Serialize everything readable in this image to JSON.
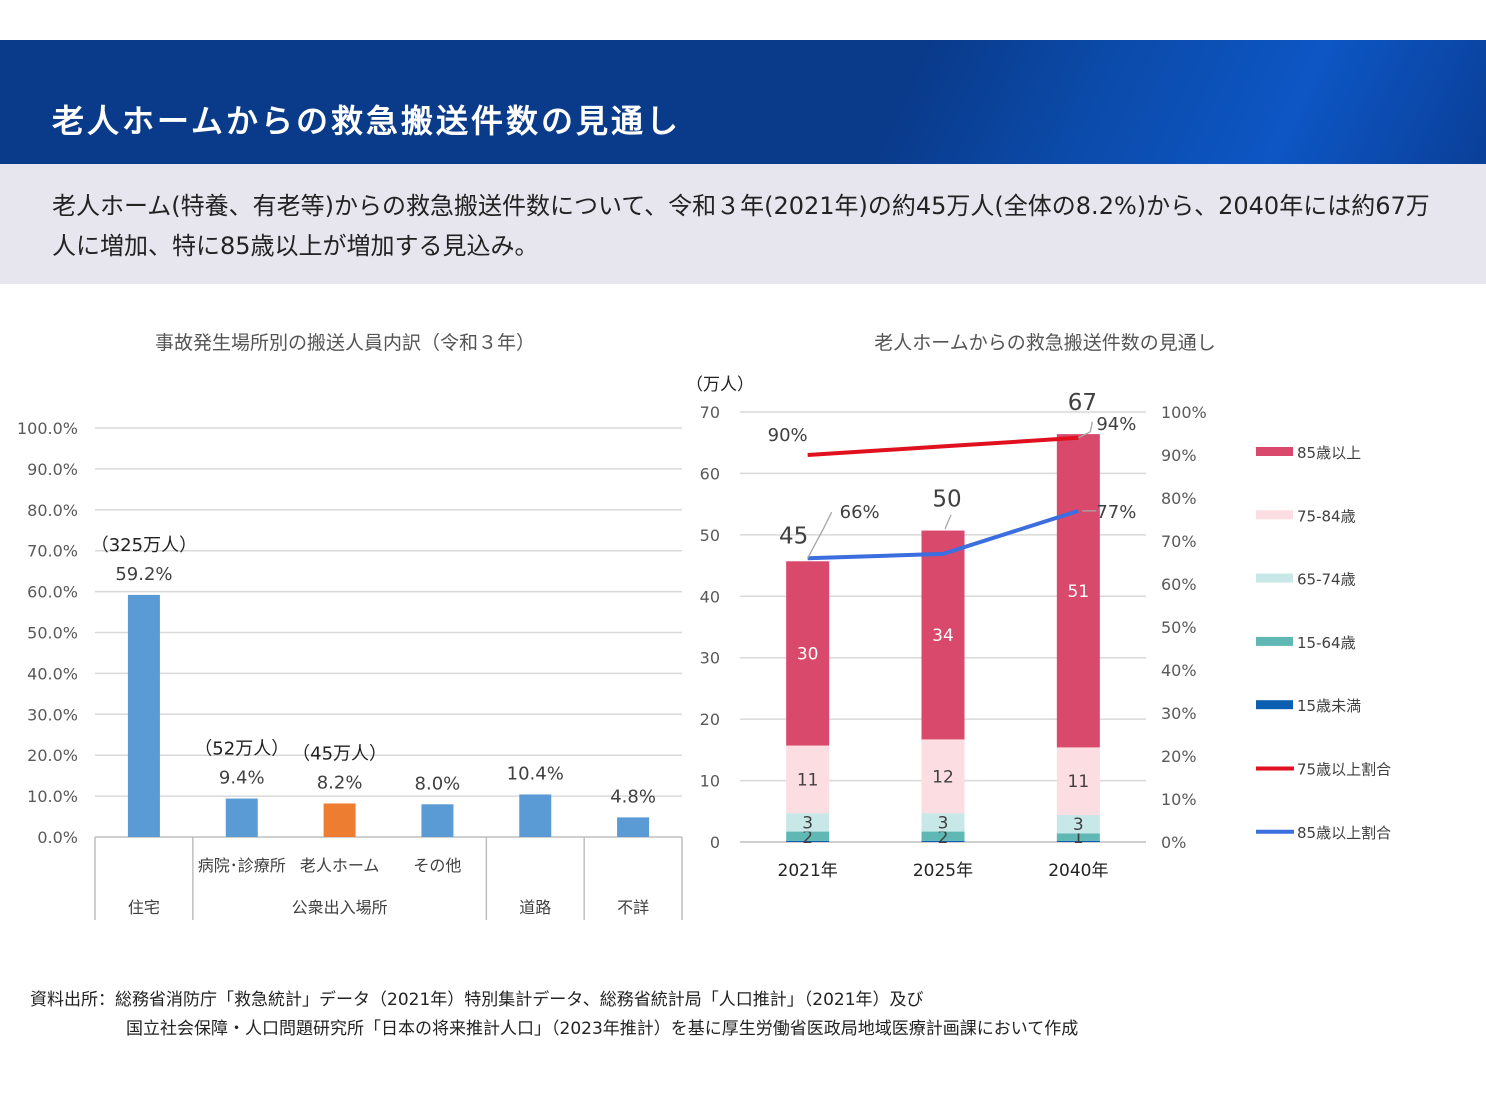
{
  "header": {
    "title": "老人ホームからの救急搬送件数の見通し"
  },
  "summary": {
    "text": "老人ホーム(特養、有老等)からの救急搬送件数について、令和３年(2021年)の約45万人(全体の8.2%)から、2040年には約67万人に増加、特に85歳以上が増加する見込み。"
  },
  "chart_data": [
    {
      "type": "bar",
      "title": "事故発生場所別の搬送人員内訳（令和３年）",
      "categories": [
        "住宅",
        "病院･診療所",
        "老人ホーム",
        "その他",
        "道路",
        "不詳"
      ],
      "values": [
        59.2,
        9.4,
        8.2,
        8.0,
        10.4,
        4.8
      ],
      "value_labels": [
        "59.2%",
        "9.4%",
        "8.2%",
        "8.0%",
        "10.4%",
        "4.8%"
      ],
      "count_labels": [
        "（325万人）",
        "（52万人）",
        "（45万人）",
        "",
        "",
        ""
      ],
      "group_labels": [
        "住宅",
        "公衆出入場所",
        "道路",
        "不詳"
      ],
      "yticks": [
        "0.0%",
        "10.0%",
        "20.0%",
        "30.0%",
        "40.0%",
        "50.0%",
        "60.0%",
        "70.0%",
        "80.0%",
        "90.0%",
        "100.0%"
      ],
      "ylim": [
        0,
        100
      ],
      "highlight_index": 2,
      "colors": {
        "bar": "#5b9bd5",
        "highlight": "#ed7d31",
        "grid": "#d9d9d9"
      }
    },
    {
      "type": "bar",
      "stacked": true,
      "title": "老人ホームからの救急搬送件数の見通し",
      "ylabel": "（万人）",
      "categories": [
        "2021年",
        "2025年",
        "2040年"
      ],
      "yticks": [
        "0",
        "10",
        "20",
        "30",
        "40",
        "50",
        "60",
        "70"
      ],
      "ylim": [
        0,
        70
      ],
      "y2ticks": [
        "0%",
        "10%",
        "20%",
        "30%",
        "40%",
        "50%",
        "60%",
        "70%",
        "80%",
        "90%",
        "100%"
      ],
      "y2lim": [
        0,
        100
      ],
      "totals": [
        45,
        50,
        67
      ],
      "series": [
        {
          "name": "85歳以上",
          "values": [
            30,
            34,
            51
          ],
          "labels": [
            "30",
            "34",
            "51"
          ],
          "color": "#d9496b"
        },
        {
          "name": "75-84歳",
          "values": [
            11,
            12,
            11
          ],
          "labels": [
            "11",
            "12",
            "11"
          ],
          "color": "#fcdde2"
        },
        {
          "name": "65-74歳",
          "values": [
            3,
            3,
            3
          ],
          "labels": [
            "3",
            "3",
            "3"
          ],
          "color": "#c8e7e7"
        },
        {
          "name": "15-64歳",
          "values": [
            1.5,
            1.5,
            1.2
          ],
          "labels": [
            "2",
            "2",
            "1"
          ],
          "color": "#5fb8b3"
        },
        {
          "name": "15歳未満",
          "values": [
            0.2,
            0.2,
            0.2
          ],
          "labels": [
            "",
            "",
            ""
          ],
          "color": "#0b5fb0"
        }
      ],
      "lines": [
        {
          "name": "75歳以上割合",
          "values": [
            90,
            92,
            94
          ],
          "labels": [
            "90%",
            "",
            "94%"
          ],
          "color": "#e0101e"
        },
        {
          "name": "85歳以上割合",
          "values": [
            66,
            67,
            77
          ],
          "labels": [
            "66%",
            "",
            "77%"
          ],
          "color": "#3b6fe0"
        }
      ]
    }
  ],
  "source": {
    "line1": "資料出所：総務省消防庁「救急統計」データ（2021年）特別集計データ、総務省統計局「人口推計」（2021年）及び",
    "line2": "国立社会保障・人口問題研究所「日本の将来推計人口」（2023年推計）を基に厚生労働省医政局地域医療計画課において作成"
  }
}
